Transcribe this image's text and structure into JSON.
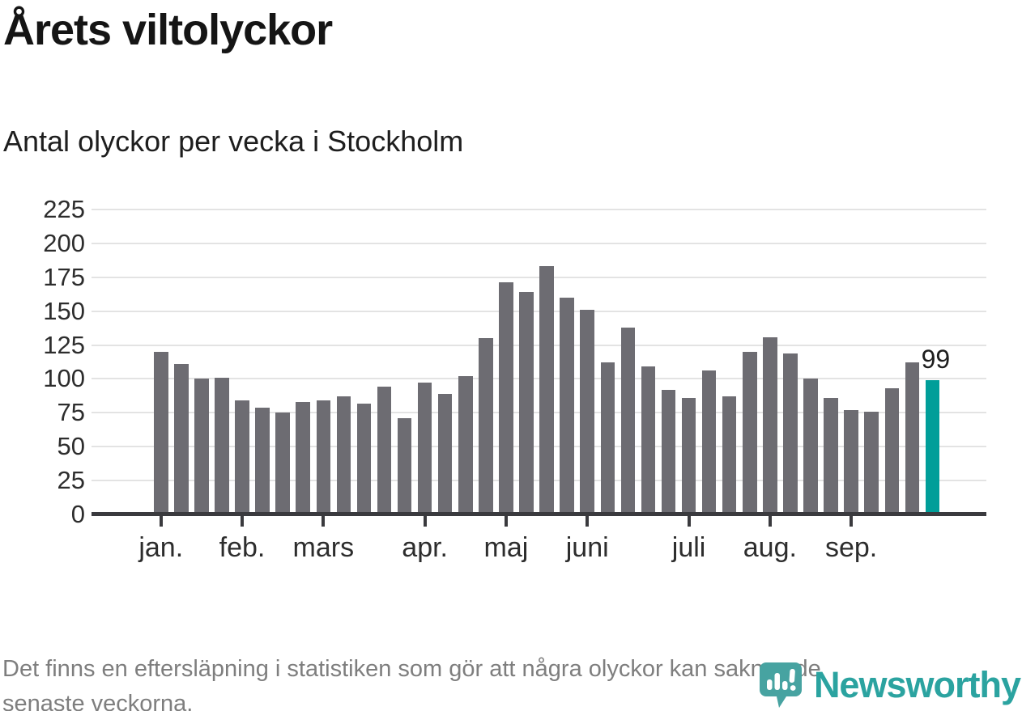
{
  "header": {
    "title": "Årets viltolyckor",
    "subtitle": "Antal olyckor per vecka i Stockholm"
  },
  "chart_data": {
    "type": "bar",
    "xlabel": "",
    "ylabel": "",
    "x_unit": "vecka",
    "x": [
      1,
      2,
      3,
      4,
      5,
      6,
      7,
      8,
      9,
      10,
      11,
      12,
      13,
      14,
      15,
      16,
      17,
      18,
      19,
      20,
      21,
      22,
      23,
      24,
      25,
      26,
      27,
      28,
      29,
      30,
      31,
      32,
      33,
      34,
      35,
      36,
      37,
      38,
      39
    ],
    "values": [
      120,
      111,
      100,
      101,
      84,
      79,
      75,
      83,
      84,
      87,
      82,
      94,
      71,
      97,
      89,
      102,
      130,
      171,
      164,
      183,
      160,
      151,
      112,
      138,
      109,
      92,
      86,
      106,
      87,
      120,
      131,
      119,
      100,
      86,
      77,
      76,
      93,
      112,
      99
    ],
    "highlight_index": 38,
    "highlight_label": "99",
    "bar_color": "#6d6c72",
    "highlight_color": "#009e99",
    "grid": true,
    "gridline_color": "#e3e3e3",
    "axis_color": "#3a3a3e",
    "ylim": [
      0,
      225
    ],
    "yticks": [
      0,
      25,
      50,
      75,
      100,
      125,
      150,
      175,
      200,
      225
    ],
    "months": [
      {
        "label": "jan.",
        "week": 1
      },
      {
        "label": "feb.",
        "week": 5
      },
      {
        "label": "mars",
        "week": 9
      },
      {
        "label": "apr.",
        "week": 14
      },
      {
        "label": "maj",
        "week": 18
      },
      {
        "label": "juni",
        "week": 22
      },
      {
        "label": "juli",
        "week": 27
      },
      {
        "label": "aug.",
        "week": 31
      },
      {
        "label": "sep.",
        "week": 35
      }
    ]
  },
  "footer": {
    "note_line1": "Det finns en eftersläpning i statistiken som gör att några olyckor kan saknas de",
    "note_line2": "senaste veckorna.",
    "logo_text": "Newsworthy",
    "logo_icon": "bar-chart-speech-bubble-icon",
    "logo_color": "#2ba3a0"
  }
}
